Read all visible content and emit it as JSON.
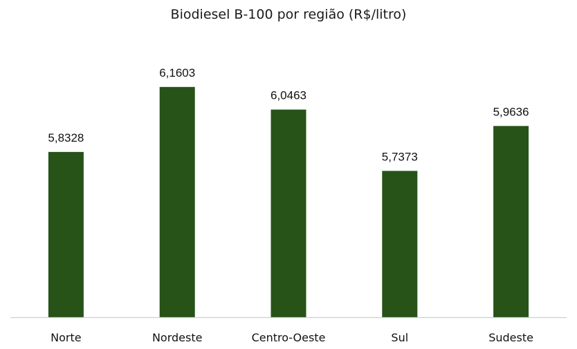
{
  "chart_data": {
    "type": "bar",
    "title": "Biodiesel B-100 por região (R$/litro)",
    "categories": [
      "Norte",
      "Nordeste",
      "Centro-Oeste",
      "Sul",
      "Sudeste"
    ],
    "values": [
      5.8328,
      6.1603,
      6.0463,
      5.7373,
      5.9636
    ],
    "data_labels": [
      "5,8328",
      "6,1603",
      "6,0463",
      "5,7373",
      "5,9636"
    ],
    "xlabel": "",
    "ylabel": "",
    "ylim": [
      5.0,
      6.4
    ],
    "grid": false,
    "legend": "none",
    "bar_color": "#275319"
  }
}
